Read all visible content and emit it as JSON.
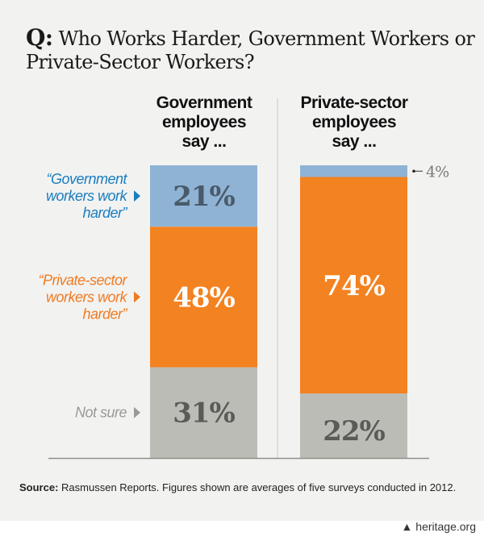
{
  "title": {
    "prefix": "Q:",
    "text": "Who Works Harder, Government Workers or Private-Sector Workers?"
  },
  "chart_data": {
    "type": "bar",
    "stacked": true,
    "title": "Q: Who Works Harder, Government Workers or Private-Sector Workers?",
    "categories": [
      "Government employees say ...",
      "Private-sector employees say ..."
    ],
    "category_lines": [
      [
        "Government",
        "employees",
        "say ..."
      ],
      [
        "Private-sector",
        "employees",
        "say ..."
      ]
    ],
    "series": [
      {
        "name": "“Government workers work harder”",
        "lines": [
          "“Government",
          "workers work",
          "harder”"
        ],
        "values": [
          21,
          4
        ],
        "labels": [
          "21%",
          "4%"
        ],
        "color": "#8fb3d5",
        "legend_color": "#1a7dbf",
        "value_color": [
          "#4a5a6a",
          "#7a7a7a"
        ]
      },
      {
        "name": "“Private-sector workers work harder”",
        "lines": [
          "“Private-sector",
          "workers work",
          "harder”"
        ],
        "values": [
          48,
          74
        ],
        "labels": [
          "48%",
          "74%"
        ],
        "color": "#f38221",
        "legend_color": "#f07a22",
        "value_color": [
          "#ffffff",
          "#ffffff"
        ]
      },
      {
        "name": "Not sure",
        "lines": [
          "Not sure"
        ],
        "values": [
          31,
          22
        ],
        "labels": [
          "31%",
          "22%"
        ],
        "color": "#bbbcb5",
        "legend_color": "#999a94",
        "value_color": [
          "#5a5a58",
          "#5a5a58"
        ]
      }
    ],
    "ylim": [
      0,
      100
    ],
    "xlabel": "",
    "ylabel": "",
    "grid": false
  },
  "source": {
    "label": "Source:",
    "text": "Rasmussen Reports. Figures shown are averages of five surveys conducted in 2012."
  },
  "footer": {
    "text": "heritage.org"
  }
}
